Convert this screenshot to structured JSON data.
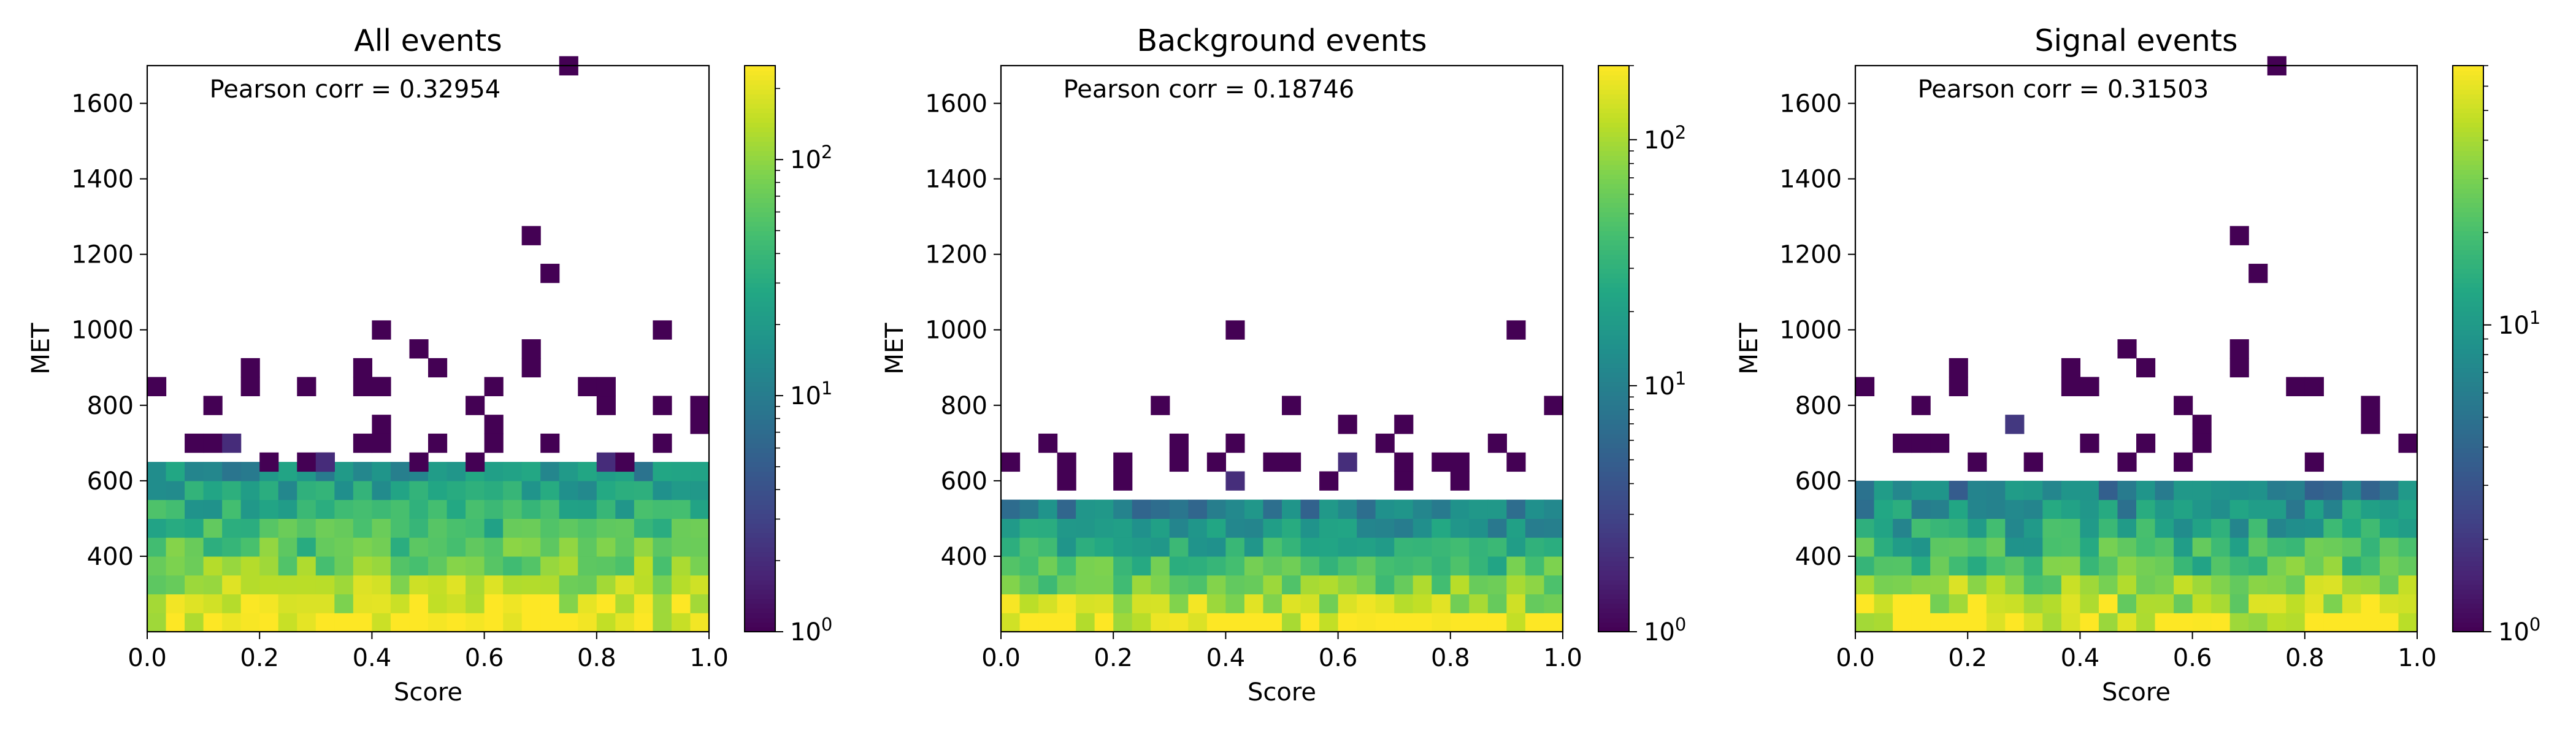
{
  "chart_data": [
    {
      "type": "heatmap",
      "title": "All events",
      "xlabel": "Score",
      "ylabel": "MET",
      "xlim": [
        0.0,
        1.0
      ],
      "ylim": [
        200,
        1700
      ],
      "x_bins": 30,
      "y_bin_width": 50,
      "xticks": [
        "0.0",
        "0.2",
        "0.4",
        "0.6",
        "0.8",
        "1.0"
      ],
      "yticks": [
        "400",
        "600",
        "800",
        "1000",
        "1200",
        "1400",
        "1600"
      ],
      "annotation": "Pearson corr = 0.32954",
      "colorbar": {
        "scale": "log",
        "colormap": "viridis",
        "min": 1,
        "max": 250,
        "tick_base": "10",
        "tick_exponents": [
          "0",
          "1",
          "2"
        ]
      },
      "density_profile": {
        "z_at_ymin": 250,
        "decay_per_50_met": 0.72,
        "filled_to_met": 650
      },
      "sparse_cells": [
        [
          0.03,
          850,
          1
        ],
        [
          0.07,
          700,
          1
        ],
        [
          0.1,
          700,
          1
        ],
        [
          0.12,
          800,
          1
        ],
        [
          0.15,
          700,
          2
        ],
        [
          0.17,
          900,
          1
        ],
        [
          0.17,
          850,
          1
        ],
        [
          0.22,
          650,
          1
        ],
        [
          0.27,
          850,
          1
        ],
        [
          0.27,
          650,
          1
        ],
        [
          0.3,
          650,
          1
        ],
        [
          0.33,
          650,
          2
        ],
        [
          0.37,
          900,
          1
        ],
        [
          0.37,
          850,
          1
        ],
        [
          0.37,
          700,
          1
        ],
        [
          0.4,
          1000,
          1
        ],
        [
          0.4,
          850,
          1
        ],
        [
          0.43,
          850,
          1
        ],
        [
          0.43,
          750,
          1
        ],
        [
          0.43,
          700,
          1
        ],
        [
          0.47,
          950,
          1
        ],
        [
          0.47,
          650,
          1
        ],
        [
          0.5,
          700,
          1
        ],
        [
          0.53,
          900,
          1
        ],
        [
          0.57,
          800,
          1
        ],
        [
          0.57,
          650,
          1
        ],
        [
          0.6,
          750,
          1
        ],
        [
          0.6,
          700,
          1
        ],
        [
          0.63,
          850,
          1
        ],
        [
          0.67,
          950,
          1
        ],
        [
          0.67,
          900,
          1
        ],
        [
          0.68,
          1250,
          1
        ],
        [
          0.73,
          1150,
          1
        ],
        [
          0.73,
          700,
          1
        ],
        [
          0.75,
          1700,
          1
        ],
        [
          0.77,
          850,
          1
        ],
        [
          0.8,
          800,
          1
        ],
        [
          0.8,
          650,
          2
        ],
        [
          0.83,
          850,
          1
        ],
        [
          0.85,
          650,
          1
        ],
        [
          0.9,
          1000,
          1
        ],
        [
          0.9,
          700,
          1
        ],
        [
          0.93,
          800,
          1
        ],
        [
          0.97,
          800,
          1
        ],
        [
          0.97,
          750,
          1
        ]
      ]
    },
    {
      "type": "heatmap",
      "title": "Background events",
      "xlabel": "Score",
      "ylabel": "MET",
      "xlim": [
        0.0,
        1.0
      ],
      "ylim": [
        200,
        1700
      ],
      "x_bins": 30,
      "y_bin_width": 50,
      "xticks": [
        "0.0",
        "0.2",
        "0.4",
        "0.6",
        "0.8",
        "1.0"
      ],
      "yticks": [
        "400",
        "600",
        "800",
        "1000",
        "1200",
        "1400",
        "1600"
      ],
      "annotation": "Pearson corr = 0.18746",
      "colorbar": {
        "scale": "log",
        "colormap": "viridis",
        "min": 1,
        "max": 200,
        "tick_base": "10",
        "tick_exponents": [
          "0",
          "1",
          "2"
        ]
      },
      "density_profile": {
        "z_at_ymin": 200,
        "decay_per_50_met": 0.62,
        "filled_to_met": 550
      },
      "sparse_cells": [
        [
          0.03,
          650,
          1
        ],
        [
          0.07,
          700,
          1
        ],
        [
          0.1,
          600,
          1
        ],
        [
          0.13,
          650,
          1
        ],
        [
          0.2,
          600,
          1
        ],
        [
          0.23,
          650,
          1
        ],
        [
          0.27,
          800,
          1
        ],
        [
          0.3,
          650,
          1
        ],
        [
          0.33,
          700,
          1
        ],
        [
          0.37,
          650,
          1
        ],
        [
          0.4,
          1000,
          1
        ],
        [
          0.4,
          600,
          2
        ],
        [
          0.43,
          700,
          1
        ],
        [
          0.47,
          650,
          1
        ],
        [
          0.5,
          800,
          1
        ],
        [
          0.53,
          650,
          1
        ],
        [
          0.57,
          600,
          1
        ],
        [
          0.6,
          750,
          1
        ],
        [
          0.63,
          650,
          2
        ],
        [
          0.67,
          700,
          1
        ],
        [
          0.7,
          750,
          1
        ],
        [
          0.7,
          650,
          1
        ],
        [
          0.73,
          600,
          1
        ],
        [
          0.77,
          650,
          1
        ],
        [
          0.8,
          600,
          1
        ],
        [
          0.83,
          650,
          1
        ],
        [
          0.87,
          700,
          1
        ],
        [
          0.9,
          1000,
          1
        ],
        [
          0.93,
          650,
          1
        ],
        [
          0.97,
          800,
          1
        ]
      ]
    },
    {
      "type": "heatmap",
      "title": "Signal events",
      "xlabel": "Score",
      "ylabel": "MET",
      "xlim": [
        0.0,
        1.0
      ],
      "ylim": [
        200,
        1700
      ],
      "x_bins": 30,
      "y_bin_width": 50,
      "xticks": [
        "0.0",
        "0.2",
        "0.4",
        "0.6",
        "0.8",
        "1.0"
      ],
      "yticks": [
        "400",
        "600",
        "800",
        "1000",
        "1200",
        "1400",
        "1600"
      ],
      "annotation": "Pearson corr = 0.31503",
      "colorbar": {
        "scale": "log",
        "colormap": "viridis",
        "min": 1,
        "max": 70,
        "tick_base": "10",
        "tick_exponents": [
          "0",
          "1"
        ]
      },
      "density_profile": {
        "z_at_ymin": 70,
        "decay_per_50_met": 0.72,
        "filled_to_met": 600
      },
      "sparse_cells": [
        [
          0.03,
          850,
          1
        ],
        [
          0.07,
          700,
          1
        ],
        [
          0.1,
          700,
          1
        ],
        [
          0.12,
          800,
          1
        ],
        [
          0.15,
          700,
          1
        ],
        [
          0.17,
          900,
          1
        ],
        [
          0.17,
          850,
          1
        ],
        [
          0.22,
          650,
          1
        ],
        [
          0.27,
          750,
          2
        ],
        [
          0.3,
          650,
          1
        ],
        [
          0.33,
          650,
          1
        ],
        [
          0.37,
          900,
          1
        ],
        [
          0.37,
          850,
          1
        ],
        [
          0.4,
          850,
          1
        ],
        [
          0.43,
          850,
          1
        ],
        [
          0.43,
          700,
          1
        ],
        [
          0.47,
          950,
          1
        ],
        [
          0.47,
          650,
          1
        ],
        [
          0.5,
          700,
          1
        ],
        [
          0.53,
          900,
          1
        ],
        [
          0.57,
          800,
          1
        ],
        [
          0.57,
          650,
          1
        ],
        [
          0.6,
          750,
          1
        ],
        [
          0.63,
          700,
          1
        ],
        [
          0.67,
          950,
          1
        ],
        [
          0.67,
          900,
          1
        ],
        [
          0.68,
          1250,
          1
        ],
        [
          0.73,
          1150,
          1
        ],
        [
          0.75,
          1700,
          1
        ],
        [
          0.77,
          850,
          1
        ],
        [
          0.8,
          650,
          1
        ],
        [
          0.83,
          850,
          1
        ],
        [
          0.9,
          800,
          1
        ],
        [
          0.93,
          750,
          1
        ],
        [
          0.97,
          700,
          1
        ]
      ]
    }
  ]
}
